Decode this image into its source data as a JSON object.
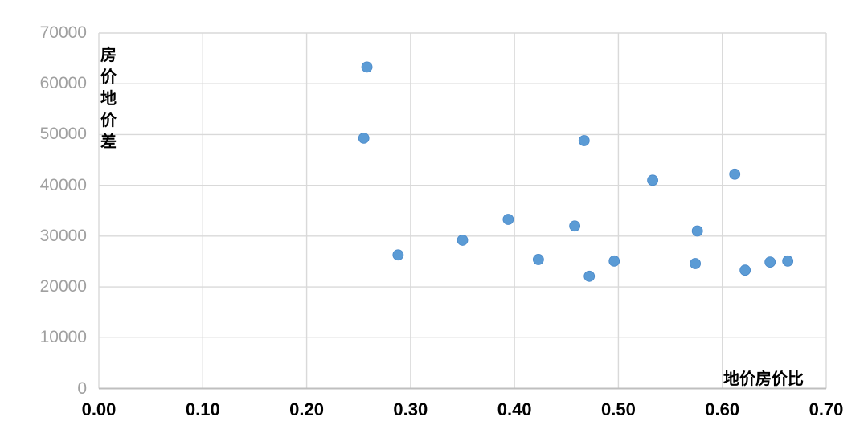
{
  "chart": {
    "y_axis_title": "房价地价差",
    "x_axis_title": "地价房价比",
    "y_tick_labels": [
      "70000",
      "60000",
      "50000",
      "40000",
      "30000",
      "20000",
      "10000",
      "0"
    ],
    "x_tick_labels": [
      "0.00",
      "0.10",
      "0.20",
      "0.30",
      "0.40",
      "0.50",
      "0.60",
      "0.70"
    ],
    "colors": {
      "marker": "#5B9BD5",
      "marker_edge": "#4A89C9",
      "gridline": "#D9D9D9",
      "axis_line": "#BFBFBF",
      "y_tick_text": "#A0A0A0",
      "x_tick_text": "#000000",
      "background": "#FFFFFF"
    }
  },
  "chart_data": {
    "type": "scatter",
    "title": "",
    "xlabel": "地价房价比",
    "ylabel": "房价地价差",
    "xlim": [
      0,
      0.7
    ],
    "ylim": [
      0,
      70000
    ],
    "x_tick_step": 0.1,
    "y_tick_step": 10000,
    "grid": true,
    "legend": "none",
    "marker_color": "#5B9BD5",
    "points": [
      {
        "x": 0.258,
        "y": 63300
      },
      {
        "x": 0.255,
        "y": 49300
      },
      {
        "x": 0.467,
        "y": 48800
      },
      {
        "x": 0.612,
        "y": 42200
      },
      {
        "x": 0.533,
        "y": 41000
      },
      {
        "x": 0.394,
        "y": 33300
      },
      {
        "x": 0.458,
        "y": 32000
      },
      {
        "x": 0.576,
        "y": 31000
      },
      {
        "x": 0.35,
        "y": 29200
      },
      {
        "x": 0.288,
        "y": 26300
      },
      {
        "x": 0.423,
        "y": 25400
      },
      {
        "x": 0.496,
        "y": 25100
      },
      {
        "x": 0.663,
        "y": 25100
      },
      {
        "x": 0.646,
        "y": 24900
      },
      {
        "x": 0.574,
        "y": 24600
      },
      {
        "x": 0.622,
        "y": 23300
      },
      {
        "x": 0.472,
        "y": 22100
      }
    ]
  }
}
